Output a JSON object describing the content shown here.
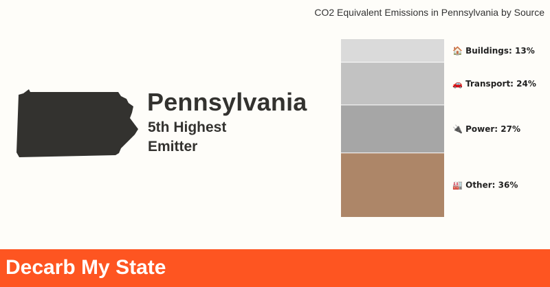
{
  "state": {
    "name": "Pennsylvania",
    "rank_line1": "5th Highest",
    "rank_line2": "Emitter"
  },
  "chart_data": {
    "type": "bar",
    "stacked": true,
    "title": "CO2 Equivalent Emissions in Pennsylvania by Source",
    "unit": "%",
    "categories": [
      "Buildings",
      "Transport",
      "Power",
      "Other"
    ],
    "values": [
      13,
      24,
      27,
      36
    ],
    "icons": [
      "🏠",
      "🚗",
      "🔌",
      "🏭"
    ],
    "labels": [
      "🏠 Buildings: 13%",
      "🚗 Transport: 24%",
      "🔌 Power: 27%",
      "🏭 Other: 36%"
    ],
    "colors": [
      "#dadada",
      "#c2c2c2",
      "#a6a6a6",
      "#ad8668"
    ]
  },
  "footer": {
    "brand": "Decarb My State",
    "background_color": "#fe5521"
  }
}
